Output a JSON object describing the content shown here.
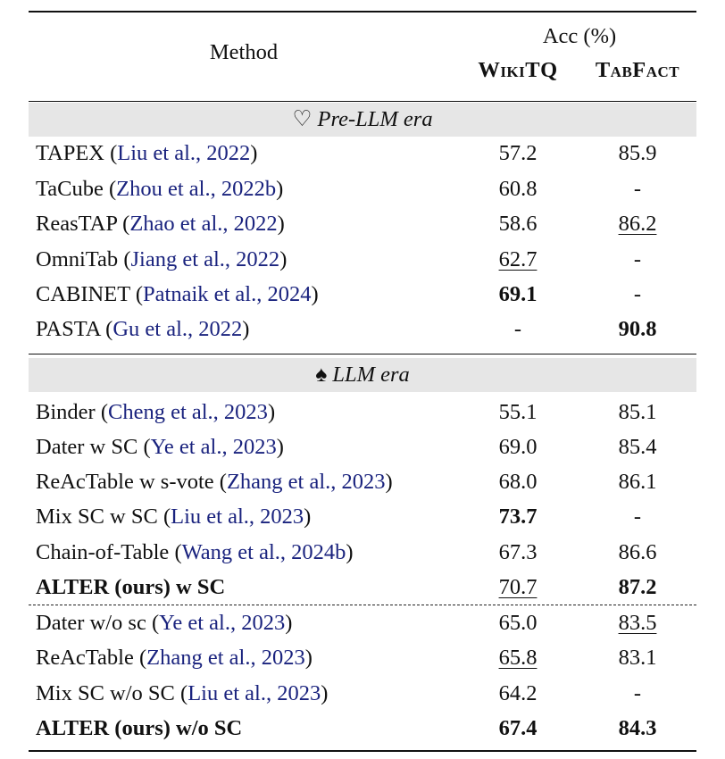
{
  "header": {
    "method_label": "Method",
    "acc_label": "Acc (%)",
    "col1": "WikiTQ",
    "col2": "TabFact"
  },
  "sections": [
    {
      "glyph": "♡",
      "label": "Pre-LLM era",
      "rows": [
        {
          "method": "TAPEX",
          "cite": "Liu et al., 2022",
          "wikitq": "57.2",
          "tabfact": "85.9"
        },
        {
          "method": "TaCube",
          "cite": "Zhou et al., 2022b",
          "wikitq": "60.8",
          "tabfact": "-"
        },
        {
          "method": "ReasTAP",
          "cite": "Zhao et al., 2022",
          "wikitq": "58.6",
          "tabfact": "86.2",
          "tabfact_style": "underline"
        },
        {
          "method": "OmniTab",
          "cite": "Jiang et al., 2022",
          "wikitq": "62.7",
          "tabfact": "-",
          "wikitq_style": "underline"
        },
        {
          "method": "CABINET",
          "cite": "Patnaik et al., 2024",
          "wikitq": "69.1",
          "tabfact": "-",
          "wikitq_style": "bold"
        },
        {
          "method": "PASTA",
          "cite": "Gu et al., 2022",
          "wikitq": "-",
          "tabfact": "90.8",
          "tabfact_style": "bold"
        }
      ]
    },
    {
      "glyph": "♠",
      "label": "LLM era",
      "rows": [
        {
          "method": "Binder",
          "cite": "Cheng et al., 2023",
          "wikitq": "55.1",
          "tabfact": "85.1"
        },
        {
          "method": "Dater w SC",
          "cite": "Ye et al., 2023",
          "wikitq": "69.0",
          "tabfact": "85.4"
        },
        {
          "method": "ReAcTable w s-vote",
          "cite": "Zhang et al., 2023",
          "wikitq": "68.0",
          "tabfact": "86.1"
        },
        {
          "method": "Mix SC w SC",
          "cite": "Liu et al., 2023",
          "wikitq": "73.7",
          "tabfact": "-",
          "wikitq_style": "bold"
        },
        {
          "method": "Chain-of-Table",
          "cite": "Wang et al., 2024b",
          "wikitq": "67.3",
          "tabfact": "86.6"
        },
        {
          "method": "ALTER (ours) w SC",
          "cite": "",
          "wikitq": "70.7",
          "tabfact": "87.2",
          "method_style": "bold",
          "wikitq_style": "underline",
          "tabfact_style": "bold"
        },
        {
          "method": "Dater w/o sc",
          "cite": "Ye et al., 2023",
          "wikitq": "65.0",
          "tabfact": "83.5",
          "tabfact_style": "underline"
        },
        {
          "method": "ReAcTable",
          "cite": "Zhang et al., 2023",
          "wikitq": "65.8",
          "tabfact": "83.1",
          "wikitq_style": "underline"
        },
        {
          "method": "Mix SC w/o SC",
          "cite": "Liu et al., 2023",
          "wikitq": "64.2",
          "tabfact": "-"
        },
        {
          "method": "ALTER (ours) w/o SC",
          "cite": "",
          "wikitq": "67.4",
          "tabfact": "84.3",
          "method_style": "bold",
          "wikitq_style": "bold",
          "tabfact_style": "bold"
        }
      ]
    }
  ]
}
